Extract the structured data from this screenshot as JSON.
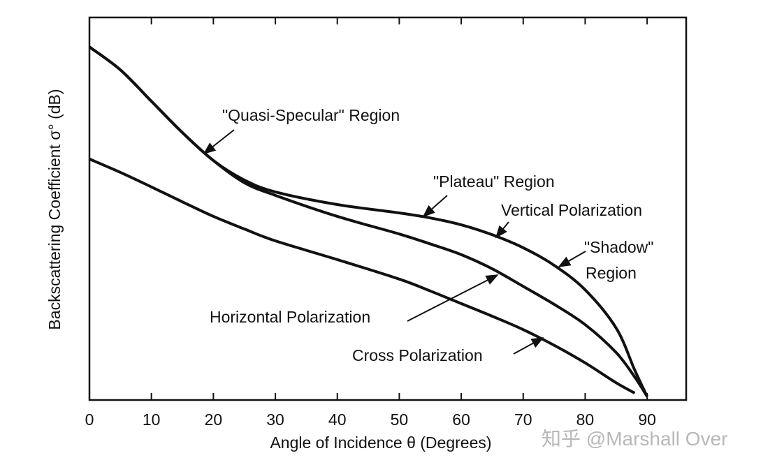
{
  "chart_data": {
    "type": "line",
    "x_label": "Angle of Incidence θ (Degrees)",
    "y_label": "Backscattering Coefficient σ° (dB)",
    "x": [
      0,
      5,
      10,
      15,
      20,
      25,
      30,
      40,
      50,
      55,
      60,
      65,
      70,
      75,
      80,
      85,
      88,
      90
    ],
    "series": [
      {
        "name": "Vertical Polarization",
        "color": "#111111",
        "values": [
          92.3,
          86.3,
          78.1,
          69.9,
          62.6,
          57.5,
          54.4,
          51.1,
          48.9,
          47.6,
          45.8,
          43.2,
          39.8,
          35.2,
          28.8,
          18.8,
          7.8,
          0.9
        ]
      },
      {
        "name": "Horizontal Polarization",
        "color": "#111111",
        "values": [
          92.3,
          86.3,
          78.1,
          69.9,
          62.6,
          56.8,
          53.5,
          48.0,
          43.4,
          40.8,
          38.0,
          34.3,
          29.7,
          25.0,
          19.7,
          12.4,
          6.0,
          0.9
        ]
      },
      {
        "name": "Cross Polarization",
        "color": "#111111",
        "values": [
          63.0,
          59.5,
          55.7,
          51.8,
          48.0,
          44.7,
          41.6,
          36.7,
          31.6,
          28.5,
          25.2,
          21.9,
          18.4,
          14.3,
          9.7,
          4.5,
          1.8,
          null
        ]
      }
    ],
    "annotations": [
      "\"Quasi-Specular\" Region",
      "\"Plateau\" Region",
      "\"Shadow\"",
      "Region"
    ],
    "xlim": [
      0,
      96.3
    ],
    "ylim": [
      0,
      100
    ],
    "xticks": [
      0,
      10,
      20,
      30,
      40,
      50,
      60,
      70,
      80,
      90
    ],
    "watermark": "知乎 @Marshall Over"
  }
}
